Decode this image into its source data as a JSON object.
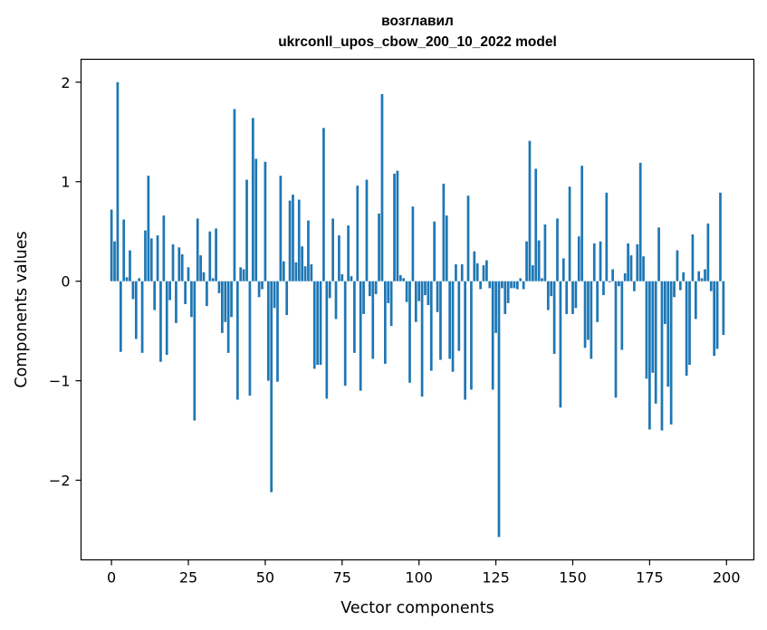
{
  "chart_data": {
    "type": "bar",
    "title_line1": "возглавил",
    "title_line2": "ukrconll_upos_cbow_200_10_2022 model",
    "xlabel": "Vector components",
    "ylabel": "Components values",
    "xlim": [
      -9.9,
      208.9
    ],
    "ylim": [
      -2.8,
      2.23
    ],
    "xticks": [
      0,
      25,
      50,
      75,
      100,
      125,
      150,
      175,
      200
    ],
    "xtick_labels": [
      "0",
      "25",
      "50",
      "75",
      "100",
      "125",
      "150",
      "175",
      "200"
    ],
    "yticks": [
      -2,
      -1,
      0,
      1,
      2
    ],
    "ytick_labels": [
      "−2",
      "−1",
      "0",
      "1",
      "2"
    ],
    "bar_color": "#1f77b4",
    "grid": false,
    "x": [
      0,
      1,
      2,
      3,
      4,
      5,
      6,
      7,
      8,
      9,
      10,
      11,
      12,
      13,
      14,
      15,
      16,
      17,
      18,
      19,
      20,
      21,
      22,
      23,
      24,
      25,
      26,
      27,
      28,
      29,
      30,
      31,
      32,
      33,
      34,
      35,
      36,
      37,
      38,
      39,
      40,
      41,
      42,
      43,
      44,
      45,
      46,
      47,
      48,
      49,
      50,
      51,
      52,
      53,
      54,
      55,
      56,
      57,
      58,
      59,
      60,
      61,
      62,
      63,
      64,
      65,
      66,
      67,
      68,
      69,
      70,
      71,
      72,
      73,
      74,
      75,
      76,
      77,
      78,
      79,
      80,
      81,
      82,
      83,
      84,
      85,
      86,
      87,
      88,
      89,
      90,
      91,
      92,
      93,
      94,
      95,
      96,
      97,
      98,
      99,
      100,
      101,
      102,
      103,
      104,
      105,
      106,
      107,
      108,
      109,
      110,
      111,
      112,
      113,
      114,
      115,
      116,
      117,
      118,
      119,
      120,
      121,
      122,
      123,
      124,
      125,
      126,
      127,
      128,
      129,
      130,
      131,
      132,
      133,
      134,
      135,
      136,
      137,
      138,
      139,
      140,
      141,
      142,
      143,
      144,
      145,
      146,
      147,
      148,
      149,
      150,
      151,
      152,
      153,
      154,
      155,
      156,
      157,
      158,
      159,
      160,
      161,
      162,
      163,
      164,
      165,
      166,
      167,
      168,
      169,
      170,
      171,
      172,
      173,
      174,
      175,
      176,
      177,
      178,
      179,
      180,
      181,
      182,
      183,
      184,
      185,
      186,
      187,
      188,
      189,
      190,
      191,
      192,
      193,
      194,
      195,
      196,
      197,
      198,
      199
    ],
    "values": [
      0.72,
      0.4,
      2.0,
      -0.71,
      0.62,
      0.04,
      0.31,
      -0.18,
      -0.58,
      0.03,
      -0.72,
      0.51,
      1.06,
      0.43,
      -0.29,
      0.46,
      -0.81,
      0.66,
      -0.74,
      -0.19,
      0.37,
      -0.42,
      0.34,
      0.27,
      -0.23,
      0.14,
      -0.36,
      -1.4,
      0.63,
      0.26,
      0.09,
      -0.25,
      0.5,
      0.03,
      0.53,
      -0.12,
      -0.52,
      -0.41,
      -0.72,
      -0.36,
      1.73,
      -1.19,
      0.14,
      0.12,
      1.02,
      -1.15,
      1.64,
      1.23,
      -0.16,
      -0.08,
      1.2,
      -1.0,
      -2.12,
      -0.27,
      -1.01,
      1.06,
      0.2,
      -0.34,
      0.81,
      0.87,
      0.19,
      0.82,
      0.35,
      0.15,
      0.61,
      0.17,
      -0.88,
      -0.84,
      -0.84,
      1.54,
      -1.18,
      -0.17,
      0.63,
      -0.38,
      0.46,
      0.07,
      -1.05,
      0.56,
      0.05,
      -0.72,
      0.96,
      -1.1,
      -0.33,
      1.02,
      -0.15,
      -0.78,
      -0.13,
      0.68,
      1.88,
      -0.83,
      -0.22,
      -0.45,
      1.08,
      1.11,
      0.06,
      0.03,
      -0.21,
      -1.02,
      0.75,
      -0.41,
      -0.2,
      -1.16,
      -0.14,
      -0.24,
      -0.9,
      0.6,
      -0.31,
      -0.79,
      0.98,
      0.66,
      -0.78,
      -0.91,
      0.17,
      -0.7,
      0.17,
      -1.19,
      0.86,
      -1.09,
      0.3,
      0.18,
      -0.08,
      0.16,
      0.21,
      -0.07,
      -1.09,
      -0.52,
      -2.57,
      -0.07,
      -0.33,
      -0.22,
      -0.07,
      -0.07,
      -0.08,
      0.03,
      -0.08,
      0.4,
      1.41,
      0.16,
      1.13,
      0.41,
      0.03,
      0.57,
      -0.29,
      -0.15,
      -0.73,
      0.63,
      -1.27,
      0.23,
      -0.33,
      0.95,
      -0.33,
      -0.27,
      0.45,
      1.16,
      -0.67,
      -0.59,
      -0.78,
      0.38,
      -0.41,
      0.4,
      -0.14,
      0.89,
      -0.01,
      0.12,
      -1.17,
      -0.05,
      -0.69,
      0.08,
      0.38,
      0.26,
      -0.1,
      0.37,
      1.19,
      0.25,
      -0.98,
      -1.49,
      -0.92,
      -1.23,
      0.54,
      -1.5,
      -0.43,
      -1.06,
      -1.44,
      -0.16,
      0.31,
      -0.09,
      0.09,
      -0.95,
      -0.84,
      0.47,
      -0.38,
      0.1,
      0.03,
      0.12,
      0.58,
      -0.1,
      -0.75,
      -0.68,
      0.89,
      -0.54
    ]
  }
}
